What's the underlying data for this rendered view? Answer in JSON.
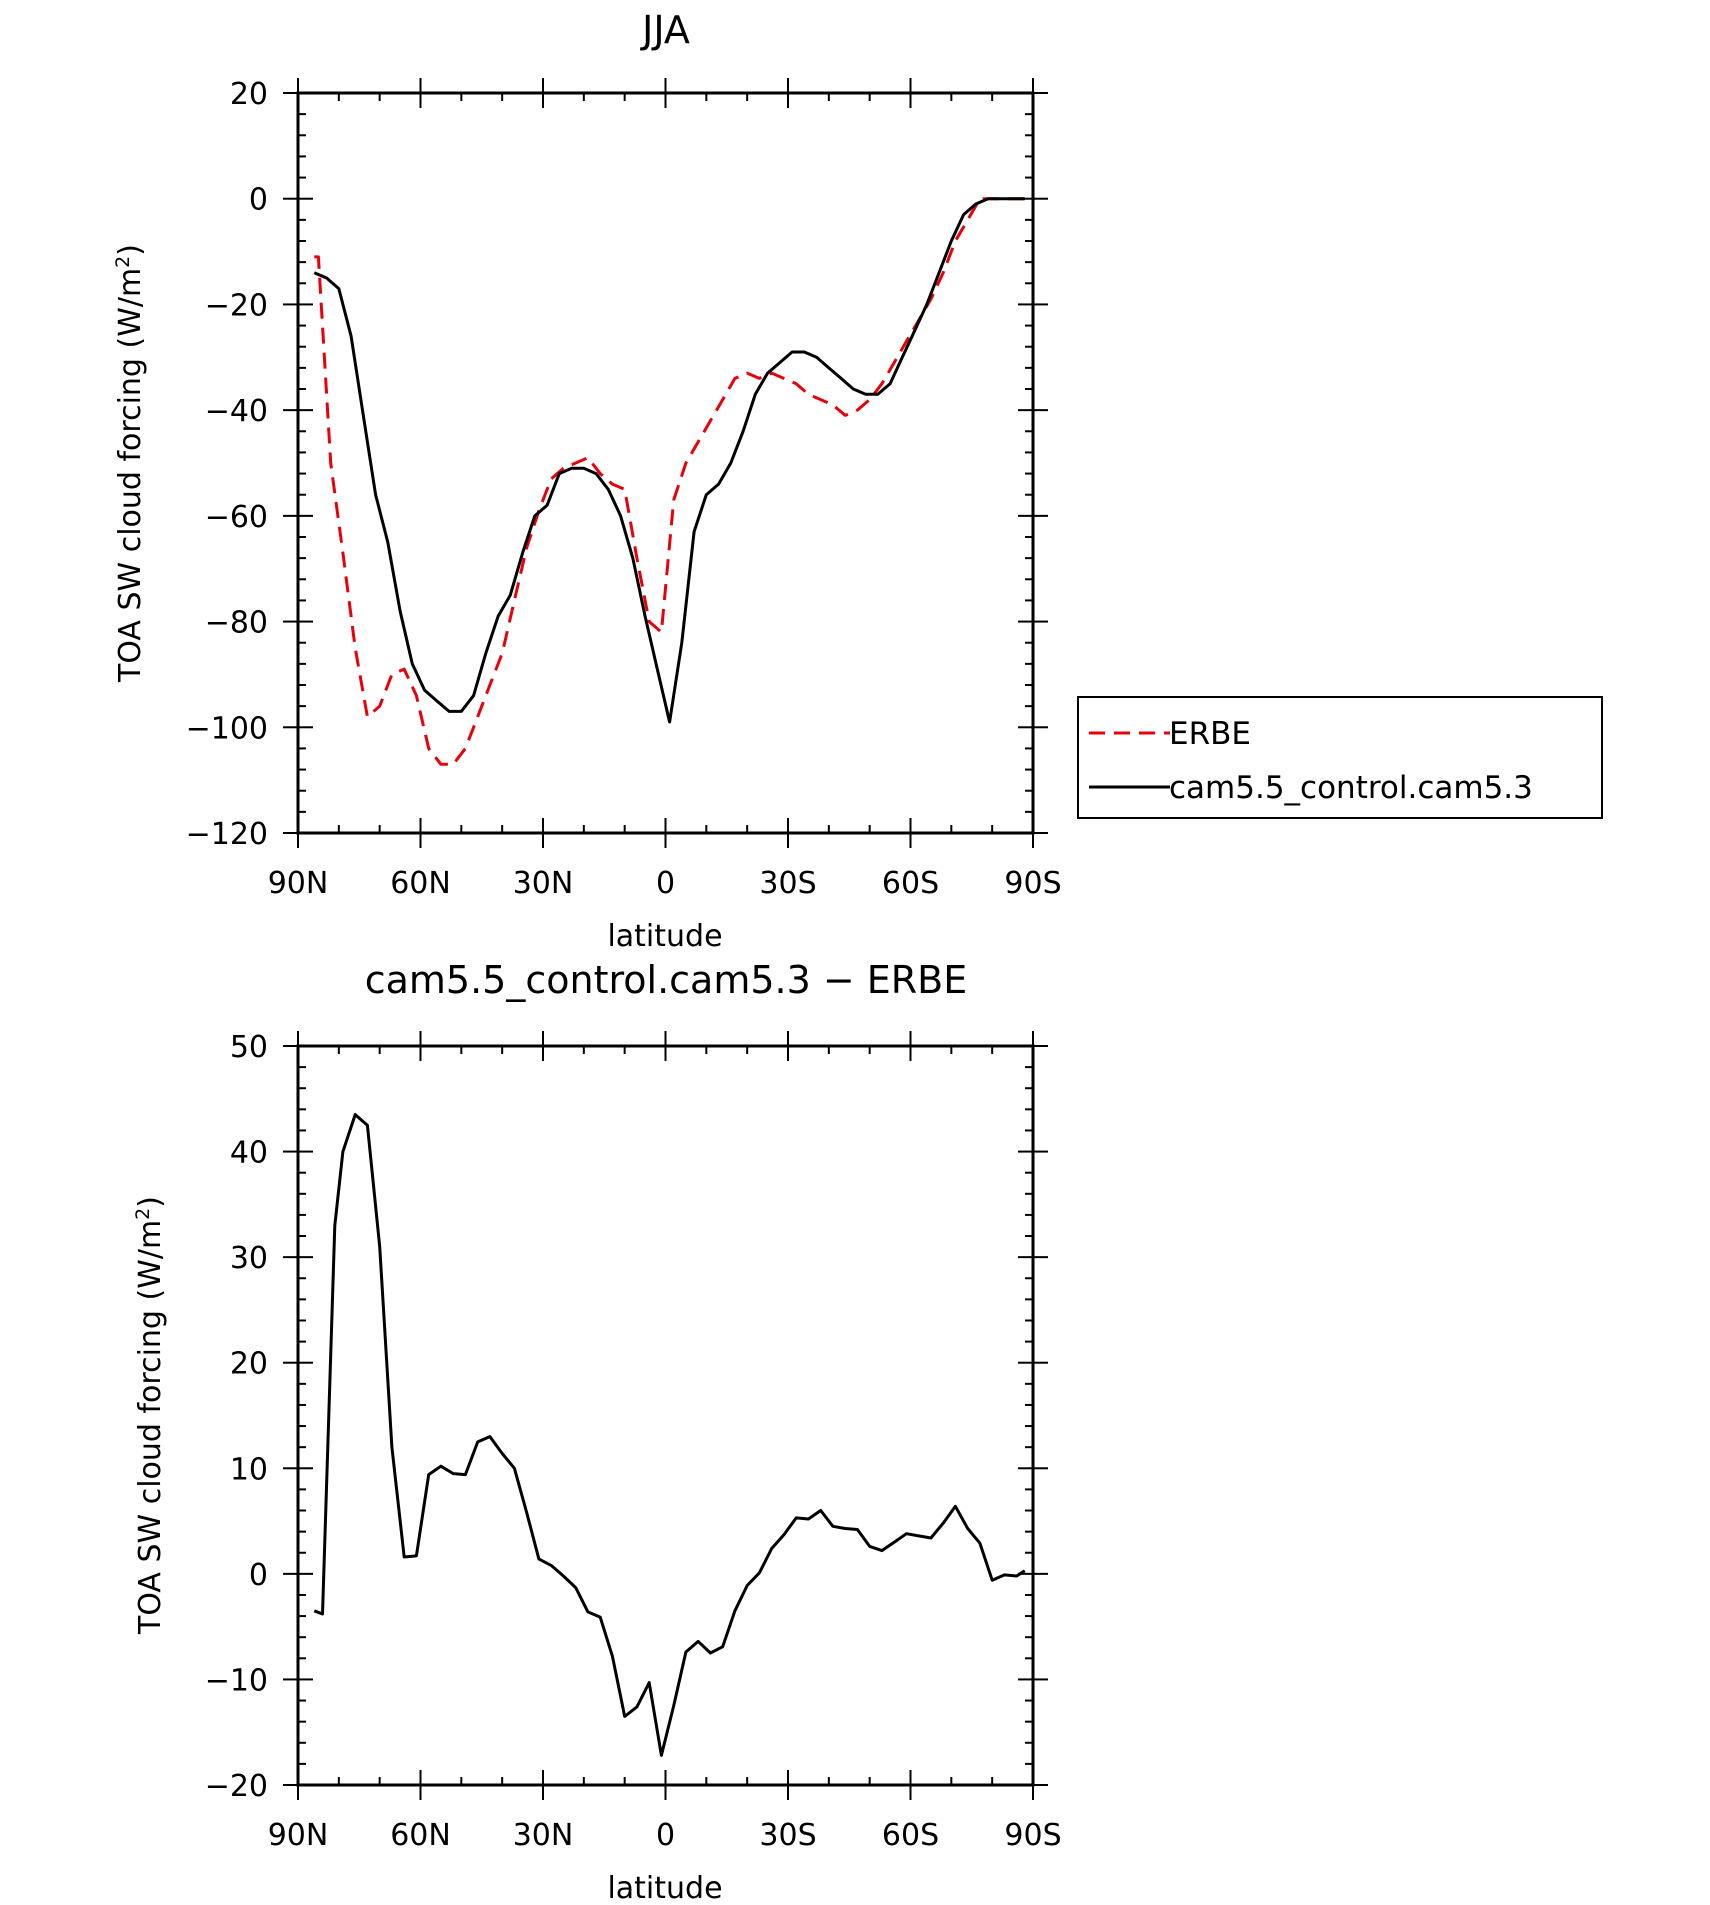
{
  "chart_data": [
    {
      "type": "line",
      "title": "JJA",
      "xlabel": "latitude",
      "ylabel": "TOA SW cloud forcing (W/m²)",
      "ylabel_parts": {
        "main": "TOA SW cloud forcing (W/m",
        "sup": "2",
        "end": ")"
      },
      "xlim": [
        90,
        -90
      ],
      "ylim": [
        -120,
        20
      ],
      "xticks": [
        90,
        60,
        30,
        0,
        -30,
        -60,
        -90
      ],
      "xtick_labels": [
        "90N",
        "60N",
        "30N",
        "0",
        "30S",
        "60S",
        "90S"
      ],
      "yticks": [
        -120,
        -100,
        -80,
        -60,
        -40,
        -20,
        0,
        20
      ],
      "ytick_labels": [
        "−120",
        "−100",
        "−80",
        "−60",
        "−40",
        "−20",
        "0",
        "20"
      ],
      "grid": false,
      "legend": {
        "position": "right",
        "entries": [
          "ERBE",
          "cam5.5_control.cam5.3"
        ]
      },
      "series": [
        {
          "name": "ERBE",
          "color": "#e8000b",
          "style": "dashed",
          "x": [
            86,
            85,
            82,
            79,
            76,
            73,
            70,
            67,
            64,
            61,
            58,
            55,
            52,
            49,
            46,
            43,
            40,
            37,
            34,
            31,
            28,
            25,
            22,
            19,
            16,
            13,
            10,
            7,
            4,
            1,
            -2,
            -5,
            -8,
            -11,
            -14,
            -17,
            -20,
            -23,
            -26,
            -29,
            -32,
            -35,
            -38,
            -41,
            -44,
            -47,
            -50,
            -53,
            -56,
            -59,
            -62,
            -65,
            -68,
            -71,
            -74,
            -77,
            -80,
            -83,
            -86,
            -88
          ],
          "y": [
            -11,
            -11,
            -50,
            -67,
            -85,
            -98,
            -96,
            -90,
            -89,
            -94,
            -104,
            -107,
            -107,
            -104,
            -98,
            -92,
            -86,
            -76,
            -66,
            -59,
            -53,
            -51,
            -50,
            -49,
            -52,
            -54,
            -55,
            -68,
            -80,
            -82,
            -57,
            -50,
            -46,
            -42,
            -38,
            -34,
            -33,
            -34,
            -33,
            -34,
            -35,
            -37,
            -38,
            -39,
            -41,
            -40,
            -38,
            -35,
            -31,
            -27,
            -23,
            -19,
            -14,
            -8,
            -4,
            0,
            0,
            0,
            0,
            0
          ]
        },
        {
          "name": "cam5.5_control.cam5.3",
          "color": "#000000",
          "style": "solid",
          "x": [
            86,
            83,
            80,
            77,
            74,
            71,
            68,
            65,
            62,
            59,
            56,
            53,
            50,
            47,
            44,
            41,
            38,
            35,
            32,
            29,
            26,
            23,
            20,
            17,
            14,
            11,
            8,
            5,
            2,
            -1,
            -4,
            -7,
            -10,
            -13,
            -16,
            -19,
            -22,
            -25,
            -28,
            -31,
            -34,
            -37,
            -40,
            -43,
            -46,
            -49,
            -52,
            -55,
            -58,
            -61,
            -64,
            -67,
            -70,
            -73,
            -76,
            -79,
            -82,
            -85,
            -88
          ],
          "y": [
            -14,
            -15,
            -17,
            -26,
            -41,
            -56,
            -65,
            -78,
            -88,
            -93,
            -95,
            -97,
            -97,
            -94,
            -86,
            -79,
            -75,
            -67,
            -60,
            -58,
            -52,
            -51,
            -51,
            -52,
            -55,
            -60,
            -68,
            -79,
            -89,
            -99,
            -84,
            -63,
            -56,
            -54,
            -50,
            -44,
            -37,
            -33,
            -31,
            -29,
            -29,
            -30,
            -32,
            -34,
            -36,
            -37,
            -37,
            -35,
            -30,
            -25,
            -20,
            -14,
            -8,
            -3,
            -1,
            0,
            0,
            0,
            0
          ]
        }
      ]
    },
    {
      "type": "line",
      "title": "cam5.5_control.cam5.3 − ERBE",
      "xlabel": "latitude",
      "ylabel": "TOA SW cloud forcing (W/m²)",
      "ylabel_parts": {
        "main": "TOA SW cloud forcing (W/m",
        "sup": "2",
        "end": ")"
      },
      "xlim": [
        90,
        -90
      ],
      "ylim": [
        -20,
        50
      ],
      "xticks": [
        90,
        60,
        30,
        0,
        -30,
        -60,
        -90
      ],
      "xtick_labels": [
        "90N",
        "60N",
        "30N",
        "0",
        "30S",
        "60S",
        "90S"
      ],
      "yticks": [
        -20,
        -10,
        0,
        10,
        20,
        30,
        40,
        50
      ],
      "ytick_labels": [
        "−20",
        "−10",
        "0",
        "10",
        "20",
        "30",
        "40",
        "50"
      ],
      "grid": false,
      "series": [
        {
          "color": "#000000",
          "style": "solid",
          "x": [
            86,
            84,
            81,
            79,
            76,
            73,
            70,
            67,
            64,
            61,
            58,
            55,
            52,
            49,
            46,
            43,
            40,
            37,
            34,
            31,
            28,
            25,
            22,
            19,
            16,
            13,
            10,
            7,
            4,
            1,
            -2,
            -5,
            -8,
            -11,
            -14,
            -17,
            -20,
            -23,
            -26,
            -29,
            -32,
            -35,
            -38,
            -41,
            -44,
            -47,
            -50,
            -53,
            -56,
            -59,
            -62,
            -65,
            -68,
            -71,
            -74,
            -77,
            -80,
            -83,
            -86,
            -88
          ],
          "y": [
            -3.5,
            -3.8,
            33,
            40,
            43.5,
            42.5,
            31,
            12,
            1.6,
            1.7,
            9.4,
            10.2,
            9.5,
            9.4,
            12.5,
            13,
            11.4,
            10,
            5.8,
            1.4,
            0.8,
            -0.2,
            -1.3,
            -3.6,
            -4.1,
            -7.8,
            -13.5,
            -12.6,
            -10.3,
            -17.2,
            -12.5,
            -7.4,
            -6.4,
            -7.5,
            -6.9,
            -3.5,
            -1.1,
            0.1,
            2.4,
            3.7,
            5.3,
            5.2,
            6,
            4.5,
            4.3,
            4.2,
            2.6,
            2.2,
            3,
            3.8,
            3.6,
            3.4,
            4.8,
            6.4,
            4.3,
            2.9,
            -0.6,
            -0.1,
            -0.2,
            0.3
          ]
        }
      ]
    }
  ]
}
